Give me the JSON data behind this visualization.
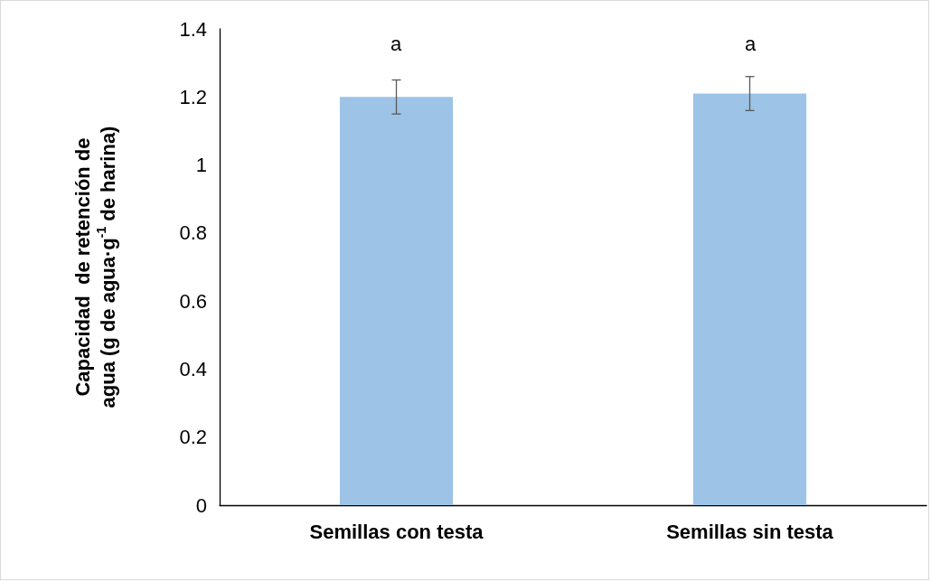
{
  "chart_data": {
    "type": "bar",
    "ylabel": "Capacidad  de retención de agua (g de agua·g$^{-1}$ de harina)",
    "categories": [
      "Semillas con testa",
      "Semillas sin testa"
    ],
    "values": [
      1.2,
      1.21
    ],
    "color": "#9dc3e6",
    "errors": [
      0.05,
      0.05
    ],
    "ylim": [
      0,
      1.4
    ],
    "yticks": [
      0,
      0.2,
      0.4,
      0.6,
      0.8,
      1,
      1.2,
      1.4
    ],
    "grid": false,
    "annotations": [
      "a",
      "a"
    ]
  }
}
